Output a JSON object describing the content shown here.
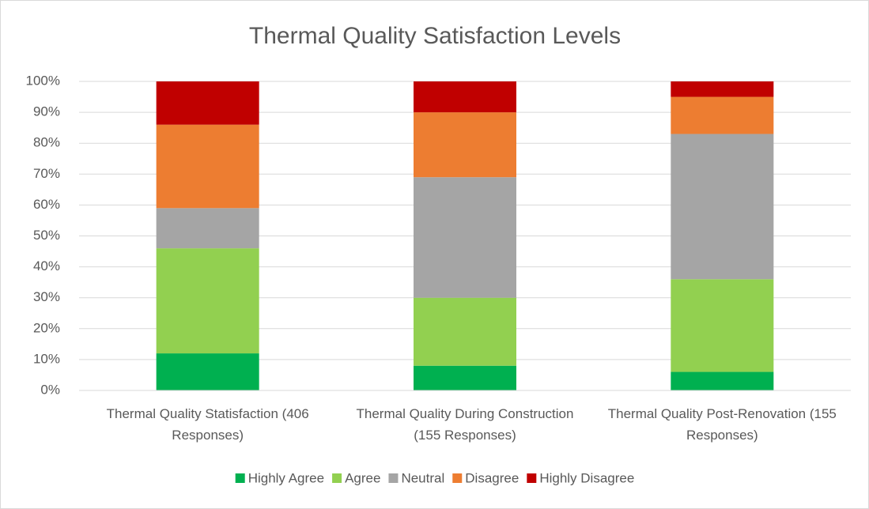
{
  "chart_data": {
    "type": "stacked_bar",
    "title": "Thermal Quality Satisfaction Levels",
    "categories": [
      "Thermal Quality Statisfaction (406 Responses)",
      "Thermal Quality During Construction (155 Responses)",
      "Thermal Quality Post-Renovation (155 Responses)"
    ],
    "series": [
      {
        "name": "Highly Agree",
        "color": "#00b050",
        "values": [
          12,
          8,
          6
        ]
      },
      {
        "name": "Agree",
        "color": "#92d050",
        "values": [
          34,
          22,
          30
        ]
      },
      {
        "name": "Neutral",
        "color": "#a5a5a5",
        "values": [
          13,
          39,
          47
        ]
      },
      {
        "name": "Disagree",
        "color": "#ed7d31",
        "values": [
          27,
          21,
          12
        ]
      },
      {
        "name": "Highly Disagree",
        "color": "#c00000",
        "values": [
          14,
          10,
          5
        ]
      }
    ],
    "ylim": [
      0,
      100
    ],
    "yticks": [
      {
        "value": 0,
        "label": "0%"
      },
      {
        "value": 10,
        "label": "10%"
      },
      {
        "value": 20,
        "label": "20%"
      },
      {
        "value": 30,
        "label": "30%"
      },
      {
        "value": 40,
        "label": "40%"
      },
      {
        "value": 50,
        "label": "50%"
      },
      {
        "value": 60,
        "label": "60%"
      },
      {
        "value": 70,
        "label": "70%"
      },
      {
        "value": 80,
        "label": "80%"
      },
      {
        "value": 90,
        "label": "90%"
      },
      {
        "value": 100,
        "label": "100%"
      }
    ],
    "grid": true,
    "legend": "bottom"
  }
}
